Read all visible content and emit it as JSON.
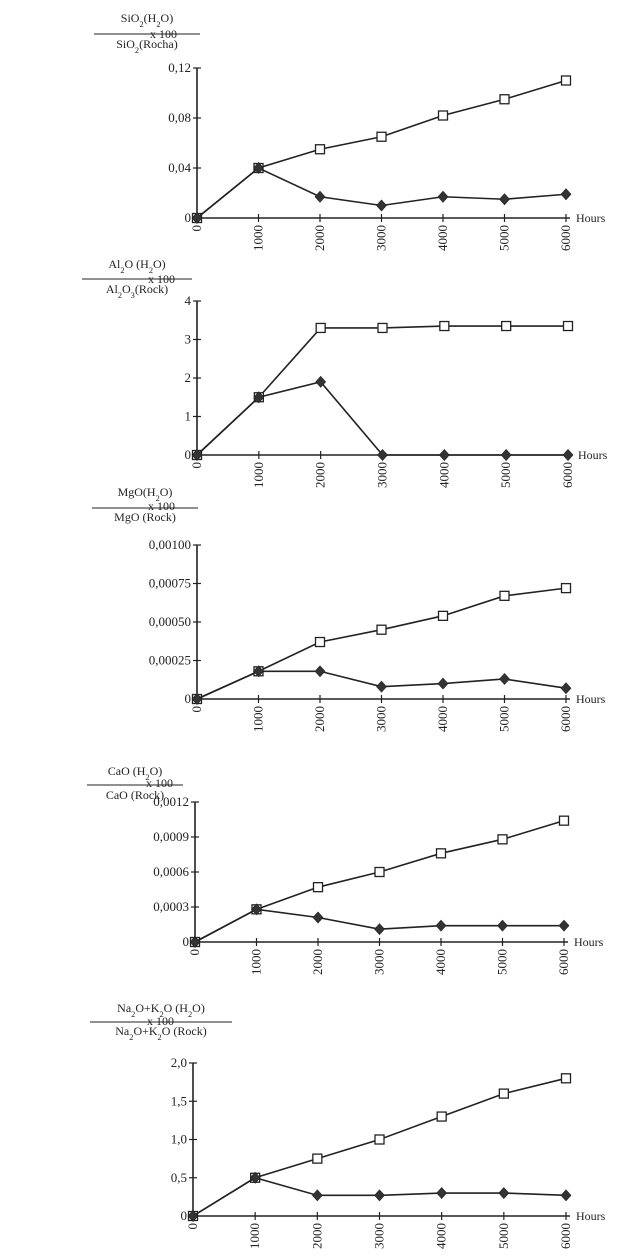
{
  "colors": {
    "ink": "#222222",
    "open_marker_fill": "#ffffff",
    "filled_marker": "#333333"
  },
  "chart_data": [
    {
      "type": "line",
      "ylabel_numerator": "SiO2(H2O)",
      "ylabel_denominator": "SiO2(Rocha)",
      "ylabel_factor": "x 100",
      "xlabel": "Hours",
      "x": [
        0,
        1000,
        2000,
        3000,
        4000,
        5000,
        6000
      ],
      "xticks": [
        "0",
        "1000",
        "2000",
        "3000",
        "4000",
        "5000",
        "6000"
      ],
      "ylim": [
        0,
        0.12
      ],
      "yticks": [
        0,
        0.04,
        0.08,
        0.12
      ],
      "ytick_labels": [
        "0",
        "0,04",
        "0,08",
        "0,12"
      ],
      "series": [
        {
          "marker": "open-square",
          "values": [
            0,
            0.04,
            0.055,
            0.065,
            0.082,
            0.095,
            0.11
          ]
        },
        {
          "marker": "filled-diamond",
          "values": [
            0,
            0.04,
            0.017,
            0.01,
            0.017,
            0.015,
            0.019
          ]
        }
      ]
    },
    {
      "type": "line",
      "ylabel_numerator": "Al2O (H2O)",
      "ylabel_denominator": "Al2O3(Rock)",
      "ylabel_factor": "x 100",
      "xlabel": "Hours",
      "x": [
        0,
        1000,
        2000,
        3000,
        4000,
        5000,
        6000
      ],
      "xticks": [
        "0",
        "1000",
        "2000",
        "3000",
        "4000",
        "5000",
        "6000"
      ],
      "ylim": [
        0,
        4
      ],
      "yticks": [
        0,
        1,
        2,
        3,
        4
      ],
      "ytick_labels": [
        "0",
        "1",
        "2",
        "3",
        "4"
      ],
      "series": [
        {
          "marker": "open-square",
          "values": [
            0,
            1.5,
            3.3,
            3.3,
            3.35,
            3.35,
            3.35
          ]
        },
        {
          "marker": "filled-diamond",
          "values": [
            0,
            1.5,
            1.9,
            0,
            0,
            0,
            0
          ]
        }
      ]
    },
    {
      "type": "line",
      "ylabel_numerator": "MgO(H2O)",
      "ylabel_denominator": "MgO (Rock)",
      "ylabel_factor": "x 100",
      "xlabel": "Hours",
      "x": [
        0,
        1000,
        2000,
        3000,
        4000,
        5000,
        6000
      ],
      "xticks": [
        "0",
        "1000",
        "2000",
        "3000",
        "4000",
        "5000",
        "6000"
      ],
      "ylim": [
        0,
        0.001
      ],
      "yticks": [
        0,
        0.00025,
        0.0005,
        0.00075,
        0.001
      ],
      "ytick_labels": [
        "0",
        "0,00025",
        "0,00050",
        "0,00075",
        "0,00100"
      ],
      "series": [
        {
          "marker": "open-square",
          "values": [
            0,
            0.00018,
            0.00037,
            0.00045,
            0.00054,
            0.00067,
            0.00072
          ]
        },
        {
          "marker": "filled-diamond",
          "values": [
            0,
            0.00018,
            0.00018,
            8e-05,
            0.0001,
            0.00013,
            7e-05
          ]
        }
      ]
    },
    {
      "type": "line",
      "ylabel_numerator": "CaO (H2O)",
      "ylabel_denominator": "CaO (Rock)",
      "ylabel_factor": "x 100",
      "xlabel": "Hours",
      "x": [
        0,
        1000,
        2000,
        3000,
        4000,
        5000,
        6000
      ],
      "xticks": [
        "0",
        "1000",
        "2000",
        "3000",
        "4000",
        "5000",
        "6000"
      ],
      "ylim": [
        0,
        0.0012
      ],
      "yticks": [
        0,
        0.0003,
        0.0006,
        0.0009,
        0.0012
      ],
      "ytick_labels": [
        "0",
        "0,0003",
        "0,0006",
        "0,0009",
        "0,0012"
      ],
      "series": [
        {
          "marker": "open-square",
          "values": [
            0,
            0.00028,
            0.00047,
            0.0006,
            0.00076,
            0.00088,
            0.00104
          ]
        },
        {
          "marker": "filled-diamond",
          "values": [
            0,
            0.00028,
            0.00021,
            0.00011,
            0.00014,
            0.00014,
            0.00014
          ]
        }
      ]
    },
    {
      "type": "line",
      "ylabel_numerator": "Na2O+K2O (H2O)",
      "ylabel_denominator": "Na2O+K2O (Rock)",
      "ylabel_factor": "x 100",
      "xlabel": "Hours",
      "x": [
        0,
        1000,
        2000,
        3000,
        4000,
        5000,
        6000
      ],
      "xticks": [
        "0",
        "1000",
        "2000",
        "3000",
        "4000",
        "5000",
        "6000"
      ],
      "ylim": [
        0,
        2.0
      ],
      "yticks": [
        0,
        0.5,
        1.0,
        1.5,
        2.0
      ],
      "ytick_labels": [
        "0",
        "0,5",
        "1,0",
        "1,5",
        "2,0"
      ],
      "series": [
        {
          "marker": "open-square",
          "values": [
            0,
            0.5,
            0.75,
            1.0,
            1.3,
            1.6,
            1.8
          ]
        },
        {
          "marker": "filled-diamond",
          "values": [
            0,
            0.5,
            0.27,
            0.27,
            0.3,
            0.3,
            0.27
          ]
        }
      ]
    }
  ]
}
